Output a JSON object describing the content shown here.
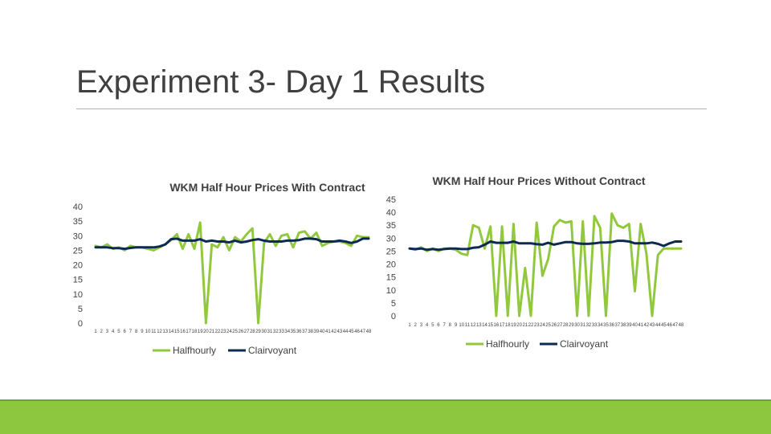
{
  "slide": {
    "title": "Experiment 3- Day 1 Results"
  },
  "colors": {
    "halfhourly": "#92c83e",
    "clairvoyant": "#0d2b52",
    "axis_text": "#404040",
    "footer": "#8dc63f"
  },
  "chart_data": [
    {
      "type": "line",
      "title": "WKM Half Hour Prices With Contract",
      "xlabel": "",
      "ylabel": "",
      "ylim": [
        0,
        40
      ],
      "yticks": [
        "0",
        "5",
        "10",
        "15",
        "20",
        "25",
        "30",
        "35",
        "40"
      ],
      "x": [
        "1",
        "2",
        "3",
        "4",
        "5",
        "6",
        "7",
        "8",
        "9",
        "10",
        "11",
        "12",
        "13",
        "14",
        "15",
        "16",
        "17",
        "18",
        "19",
        "20",
        "21",
        "22",
        "23",
        "24",
        "25",
        "26",
        "27",
        "28",
        "29",
        "30",
        "31",
        "32",
        "33",
        "34",
        "35",
        "36",
        "37",
        "38",
        "39",
        "40",
        "41",
        "42",
        "43",
        "44",
        "45",
        "46",
        "47",
        "48"
      ],
      "legend": {
        "position": "bottom"
      },
      "grid": false,
      "series": [
        {
          "name": "Halfhourly",
          "color": "#92c83e",
          "values": [
            26.5,
            26,
            27,
            25.5,
            26,
            25,
            26.5,
            26,
            26,
            25.5,
            25,
            26,
            27,
            28.5,
            30.5,
            25.5,
            30.5,
            25.5,
            34.5,
            0,
            27,
            26,
            29.5,
            25,
            29.5,
            28,
            30.5,
            32.5,
            0,
            27.5,
            30.5,
            26.5,
            30,
            30.5,
            26,
            31,
            31.5,
            29,
            31,
            26.5,
            27.5,
            28,
            28,
            27.5,
            26.5,
            30,
            29.5,
            29.5
          ]
        },
        {
          "name": "Clairvoyant",
          "color": "#0d2b52",
          "values": [
            26,
            26,
            26,
            25.7,
            25.7,
            25.5,
            25.8,
            26,
            26,
            26,
            26,
            26.3,
            27,
            28.8,
            29,
            28.3,
            28.3,
            28.3,
            28.8,
            28,
            28.3,
            28,
            28,
            27.7,
            28.3,
            27.7,
            28,
            28.5,
            28.8,
            28.3,
            28,
            28,
            28,
            28.3,
            28.3,
            28.5,
            29,
            29,
            28.8,
            28,
            28,
            28,
            28.3,
            28,
            27.5,
            28,
            29,
            29
          ]
        }
      ]
    },
    {
      "type": "line",
      "title": "WKM Half Hour Prices Without Contract",
      "xlabel": "",
      "ylabel": "",
      "ylim": [
        0,
        45
      ],
      "yticks": [
        "0",
        "5",
        "10",
        "15",
        "20",
        "25",
        "30",
        "35",
        "40",
        "45"
      ],
      "x": [
        "1",
        "2",
        "3",
        "4",
        "5",
        "6",
        "7",
        "8",
        "9",
        "10",
        "11",
        "12",
        "13",
        "14",
        "15",
        "16",
        "17",
        "18",
        "19",
        "20",
        "21",
        "22",
        "23",
        "24",
        "25",
        "26",
        "27",
        "28",
        "29",
        "30",
        "31",
        "32",
        "33",
        "34",
        "35",
        "36",
        "37",
        "38",
        "39",
        "40",
        "41",
        "42",
        "43",
        "44",
        "45",
        "46",
        "47",
        "48"
      ],
      "legend": {
        "position": "bottom"
      },
      "grid": false,
      "series": [
        {
          "name": "Halfhourly",
          "color": "#92c83e",
          "values": [
            26,
            25.5,
            26.5,
            25,
            26,
            25,
            26,
            26,
            25.5,
            24,
            23.5,
            35,
            34,
            26,
            34.5,
            0,
            34.5,
            0,
            35.5,
            0,
            18.5,
            0,
            36,
            15.5,
            22,
            34.5,
            37,
            36,
            36.5,
            0,
            36.5,
            0,
            38.5,
            34,
            0,
            39.5,
            35,
            34,
            35.5,
            9.5,
            35.5,
            24,
            0,
            23.5,
            26,
            26,
            26,
            26
          ]
        },
        {
          "name": "Clairvoyant",
          "color": "#0d2b52",
          "values": [
            26,
            25.8,
            26,
            25.5,
            25.8,
            25.5,
            25.8,
            26,
            26,
            25.8,
            25.8,
            26.3,
            26.5,
            27.5,
            28.7,
            28.2,
            28.2,
            28.2,
            28.7,
            28,
            28,
            28,
            27.7,
            27.5,
            28.2,
            27.5,
            28,
            28.5,
            28.5,
            28,
            27.8,
            27.8,
            28,
            28.3,
            28.3,
            28.5,
            29,
            29,
            28.7,
            28,
            28,
            28,
            28.3,
            27.8,
            27,
            28,
            28.7,
            28.7
          ]
        }
      ]
    }
  ]
}
